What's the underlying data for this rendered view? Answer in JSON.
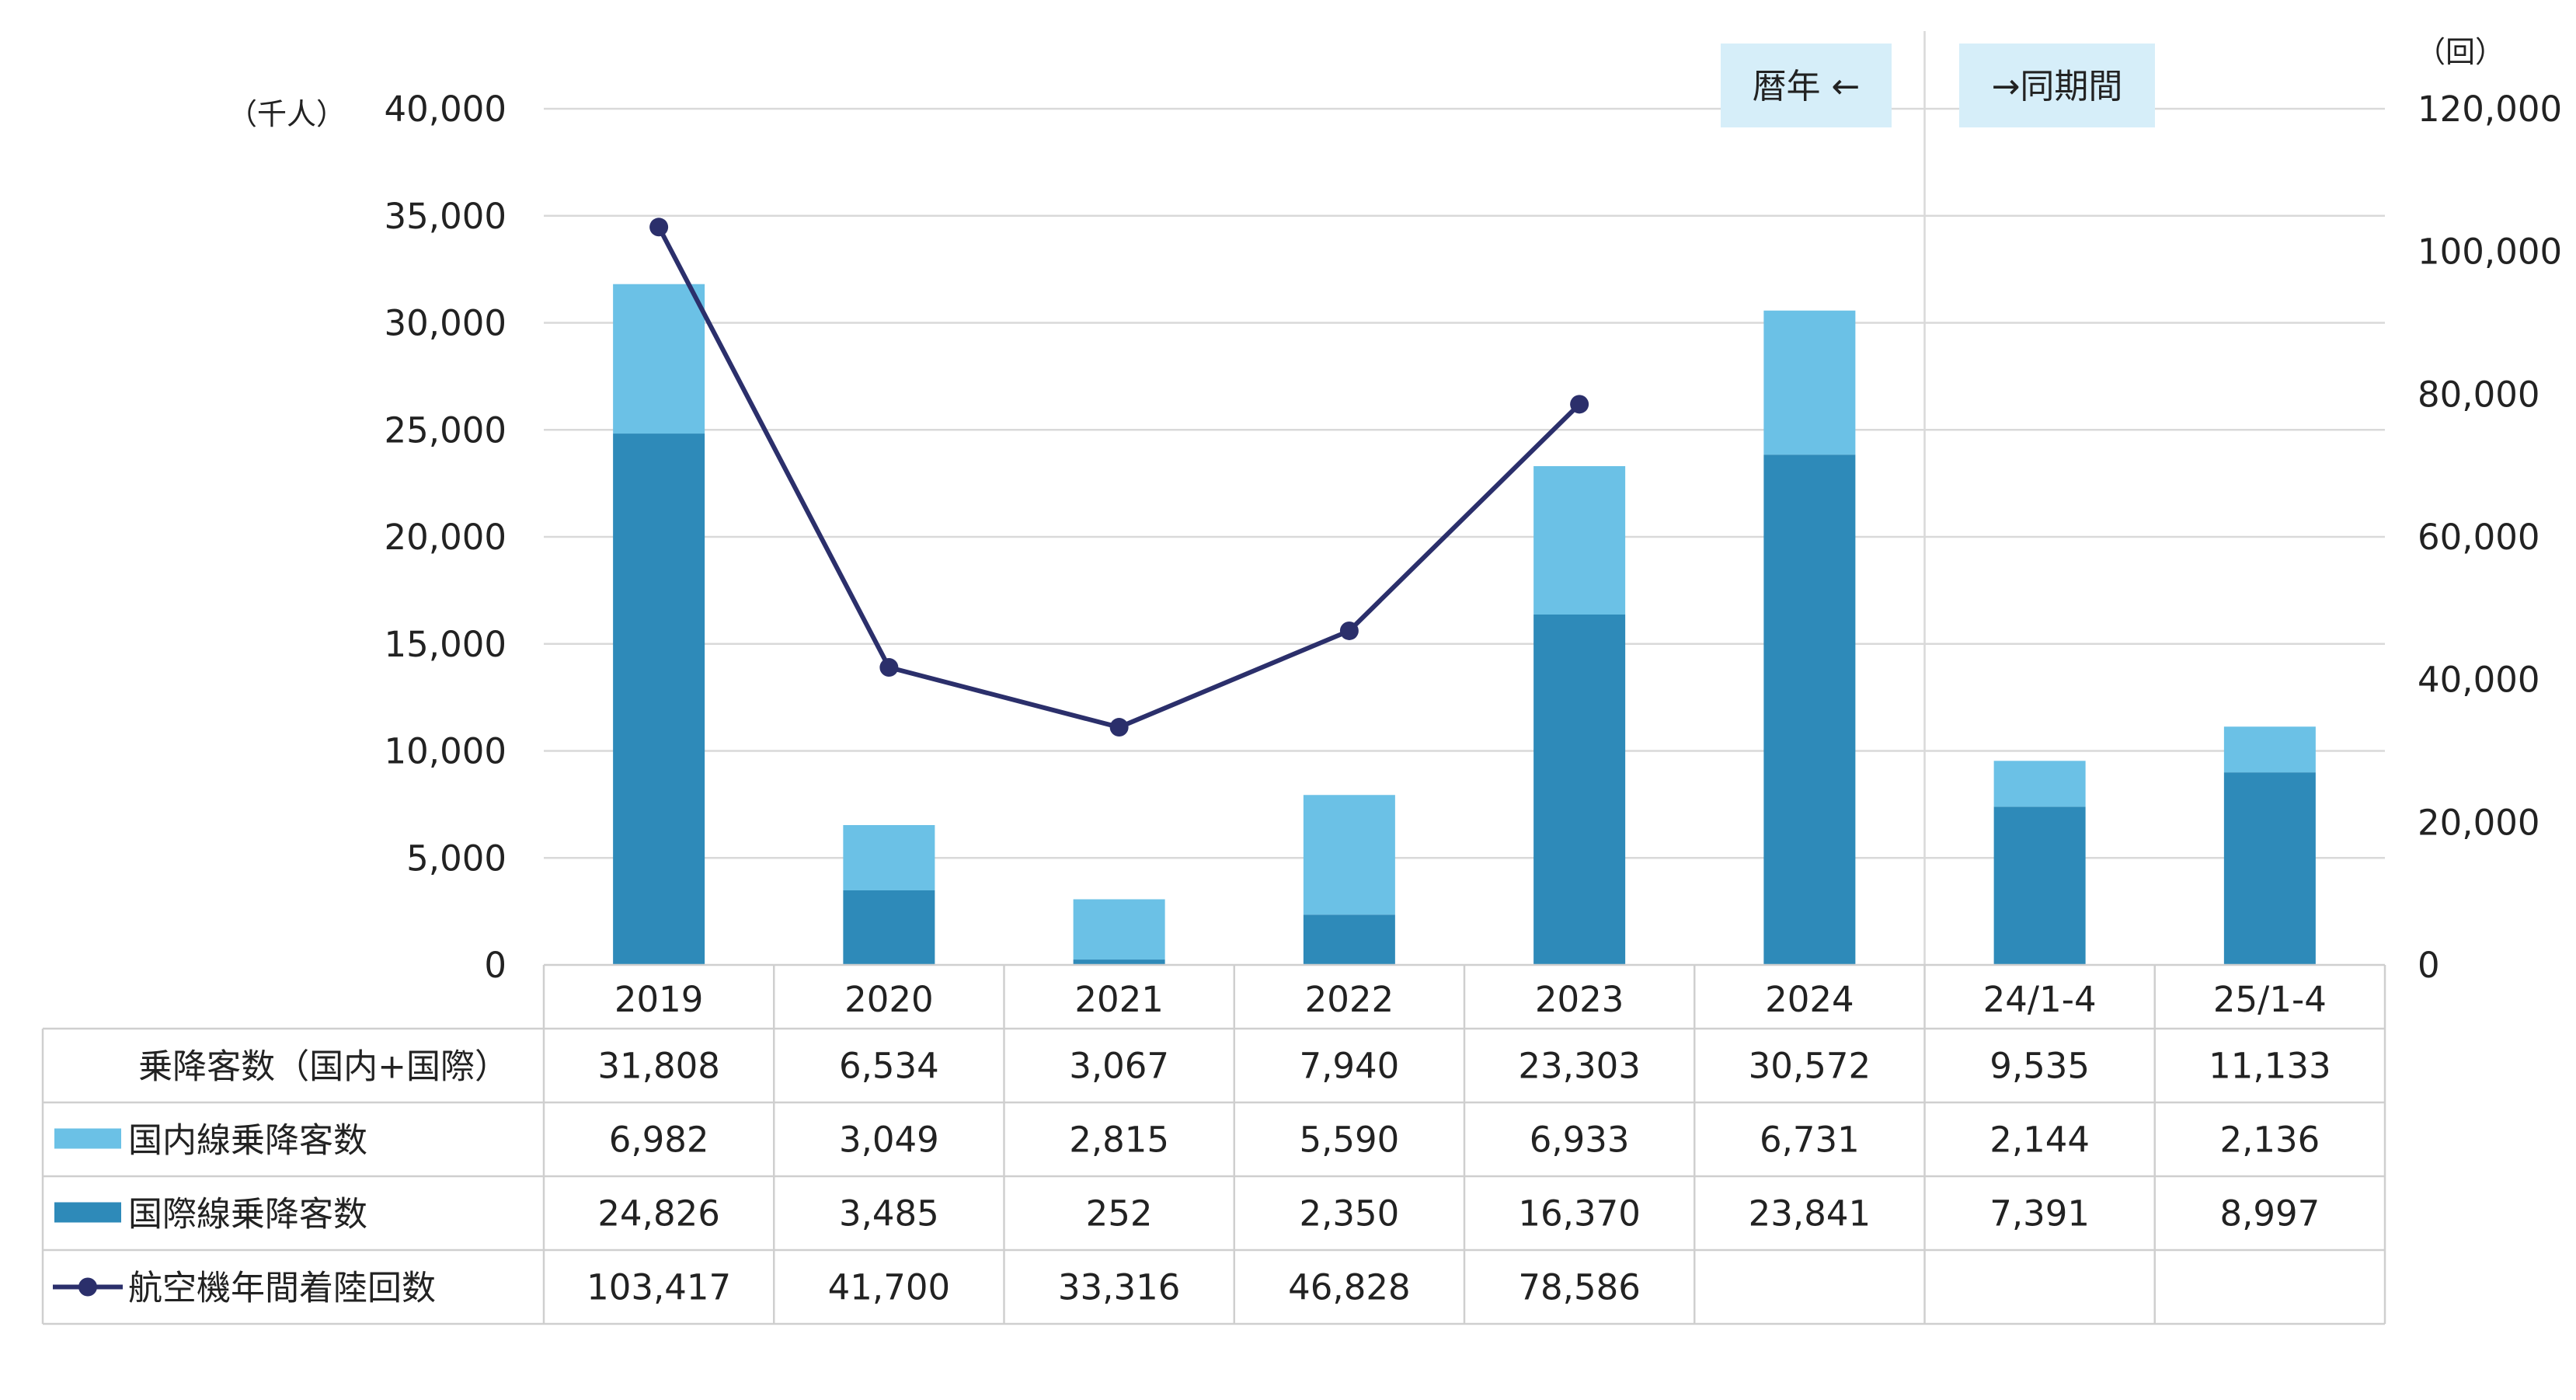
{
  "chart_data": {
    "type": "bar",
    "stacked": true,
    "categories": [
      "2019",
      "2020",
      "2021",
      "2022",
      "2023",
      "2024",
      "24/1-4",
      "25/1-4"
    ],
    "left_axis": {
      "unit_label": "（千人）",
      "ylim": [
        0,
        40000
      ],
      "ticks": [
        "0",
        "5,000",
        "10,000",
        "15,000",
        "20,000",
        "25,000",
        "30,000",
        "35,000",
        "40,000"
      ]
    },
    "right_axis": {
      "unit_label": "（回）",
      "ylim": [
        0,
        120000
      ],
      "ticks": [
        "0",
        "20,000",
        "40,000",
        "60,000",
        "80,000",
        "100,000",
        "120,000"
      ]
    },
    "annotations": {
      "calendar_year": "暦年 ←",
      "same_period": "→同期間"
    },
    "colors": {
      "domestic": "#6bc1e6",
      "international": "#2e8ab9",
      "line": "#2b2f6b",
      "grid": "#d9d9d9"
    },
    "series": [
      {
        "name": "国際線乗降客数",
        "type": "bar",
        "axis": "left",
        "color": "#2e8ab9",
        "values": [
          24826,
          3485,
          252,
          2350,
          16370,
          23841,
          7391,
          8997
        ],
        "labels": [
          "24,826",
          "3,485",
          "252",
          "2,350",
          "16,370",
          "23,841",
          "7,391",
          "8,997"
        ]
      },
      {
        "name": "国内線乗降客数",
        "type": "bar",
        "axis": "left",
        "color": "#6bc1e6",
        "values": [
          6982,
          3049,
          2815,
          5590,
          6933,
          6731,
          2144,
          2136
        ],
        "labels": [
          "6,982",
          "3,049",
          "2,815",
          "5,590",
          "6,933",
          "6,731",
          "2,144",
          "2,136"
        ]
      },
      {
        "name": "航空機年間着陸回数",
        "type": "line",
        "axis": "right",
        "color": "#2b2f6b",
        "values": [
          103417,
          41700,
          33316,
          46828,
          78586,
          null,
          null,
          null
        ],
        "labels": [
          "103,417",
          "41,700",
          "33,316",
          "46,828",
          "78,586",
          "",
          "",
          ""
        ]
      }
    ],
    "table": {
      "total_row": {
        "name": "乗降客数（国内+国際）",
        "labels": [
          "31,808",
          "6,534",
          "3,067",
          "7,940",
          "23,303",
          "30,572",
          "9,535",
          "11,133"
        ]
      }
    }
  }
}
